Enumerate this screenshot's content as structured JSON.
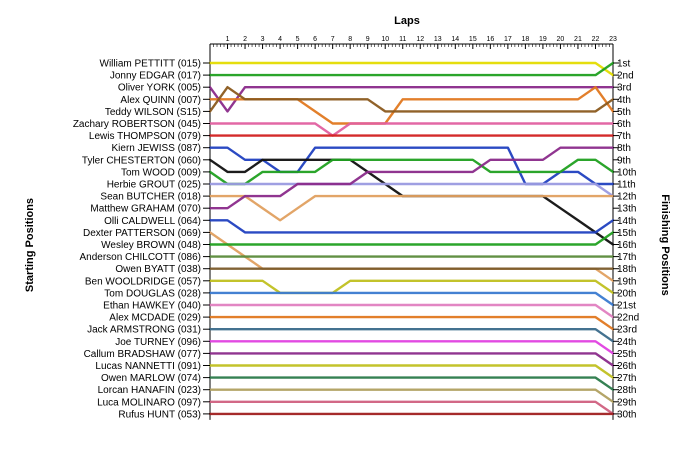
{
  "chart_data": {
    "type": "line",
    "title": "Laps",
    "xlabel": "Laps",
    "ylabel": "Starting Positions",
    "y2label": "Finishing Positions",
    "laps": [
      1,
      2,
      3,
      4,
      5,
      6,
      7,
      8,
      9,
      10,
      11,
      12,
      13,
      14,
      15,
      16,
      17,
      18,
      19,
      20,
      21,
      22,
      23
    ],
    "drivers": [
      "William PETTITT (015)",
      "Jonny EDGAR (017)",
      "Oliver YORK (005)",
      "Alex QUINN (007)",
      "Teddy WILSON (S15)",
      "Zachary ROBERTSON (045)",
      "Lewis THOMPSON (079)",
      "Kiern JEWISS (087)",
      "Tyler CHESTERTON (060)",
      "Tom WOOD (009)",
      "Herbie GROUT (025)",
      "Sean BUTCHER (018)",
      "Matthew GRAHAM (070)",
      "Olli CALDWELL (064)",
      "Dexter PATTERSON (069)",
      "Wesley BROWN (048)",
      "Anderson CHILCOTT (086)",
      "Owen BYATT (038)",
      "Ben WOOLDRIDGE (057)",
      "Tom DOUGLAS (028)",
      "Ethan HAWKEY (040)",
      "Alex MCDADE (029)",
      "Jack ARMSTRONG (031)",
      "Joe TURNEY (096)",
      "Callum BRADSHAW (077)",
      "Lucas NANNETTI (091)",
      "Owen MARLOW (074)",
      "Lorcan HANAFIN (023)",
      "Luca MOLINARO (097)",
      "Rufus HUNT (053)"
    ],
    "finishing_labels": [
      "1st",
      "2nd",
      "3rd",
      "4th",
      "5th",
      "6th",
      "7th",
      "8th",
      "9th",
      "10th",
      "11th",
      "12th",
      "13th",
      "14th",
      "15th",
      "16th",
      "17th",
      "18th",
      "19th",
      "20th",
      "21st",
      "22nd",
      "23rd",
      "24th",
      "25th",
      "26th",
      "27th",
      "28th",
      "29th",
      "30th"
    ],
    "series": [
      {
        "color": "#e4dc00",
        "values": [
          1,
          1,
          1,
          1,
          1,
          1,
          1,
          1,
          1,
          1,
          1,
          1,
          1,
          1,
          1,
          1,
          1,
          1,
          1,
          1,
          1,
          1,
          1,
          2
        ]
      },
      {
        "color": "#20a020",
        "values": [
          2,
          2,
          2,
          2,
          2,
          2,
          2,
          2,
          2,
          2,
          2,
          2,
          2,
          2,
          2,
          2,
          2,
          2,
          2,
          2,
          2,
          2,
          2,
          1
        ]
      },
      {
        "color": "#8a2a8a",
        "values": [
          3,
          5,
          3,
          3,
          3,
          3,
          3,
          3,
          3,
          3,
          3,
          3,
          3,
          3,
          3,
          3,
          3,
          3,
          3,
          3,
          3,
          3,
          3,
          3
        ]
      },
      {
        "color": "#e07820",
        "values": [
          4,
          4,
          4,
          4,
          4,
          4,
          5,
          6,
          6,
          6,
          6,
          4,
          4,
          4,
          4,
          4,
          4,
          4,
          4,
          4,
          4,
          4,
          3,
          5
        ]
      },
      {
        "color": "#8b5a1e",
        "values": [
          5,
          3,
          4,
          4,
          4,
          4,
          4,
          4,
          4,
          4,
          5,
          5,
          5,
          5,
          5,
          5,
          5,
          5,
          5,
          5,
          5,
          5,
          5,
          4
        ]
      },
      {
        "color": "#e060a0",
        "values": [
          6,
          6,
          6,
          6,
          6,
          6,
          6,
          7,
          6,
          6,
          6,
          6,
          6,
          6,
          6,
          6,
          6,
          6,
          6,
          6,
          6,
          6,
          6,
          6
        ]
      },
      {
        "color": "#d22020",
        "values": [
          7,
          7,
          7,
          7,
          7,
          7,
          7,
          7,
          7,
          7,
          7,
          7,
          7,
          7,
          7,
          7,
          7,
          7,
          7,
          7,
          7,
          7,
          7,
          7
        ]
      },
      {
        "color": "#2040c0",
        "values": [
          8,
          8,
          9,
          9,
          10,
          10,
          8,
          8,
          8,
          8,
          8,
          8,
          8,
          8,
          8,
          8,
          8,
          8,
          11,
          11,
          10,
          10,
          11,
          11
        ]
      },
      {
        "color": "#101010",
        "values": [
          9,
          10,
          10,
          9,
          9,
          9,
          9,
          9,
          9,
          10,
          11,
          12,
          12,
          12,
          12,
          12,
          12,
          12,
          12,
          12,
          13,
          14,
          15,
          16
        ]
      },
      {
        "color": "#20a020",
        "values": [
          10,
          11,
          11,
          10,
          10,
          10,
          10,
          9,
          9,
          9,
          9,
          9,
          9,
          9,
          9,
          9,
          10,
          10,
          10,
          10,
          10,
          9,
          9,
          10
        ]
      },
      {
        "color": "#9a9ae0",
        "values": [
          11,
          11,
          11,
          11,
          11,
          11,
          11,
          11,
          11,
          11,
          11,
          11,
          11,
          11,
          11,
          11,
          11,
          11,
          11,
          11,
          11,
          11,
          11,
          12
        ]
      },
      {
        "color": "#e0a060",
        "values": [
          12,
          12,
          12,
          13,
          14,
          13,
          12,
          12,
          12,
          12,
          12,
          12,
          12,
          12,
          12,
          12,
          12,
          12,
          12,
          12,
          12,
          12,
          12,
          12
        ]
      },
      {
        "color": "#8a2a8a",
        "values": [
          13,
          13,
          12,
          12,
          12,
          11,
          11,
          11,
          11,
          10,
          10,
          10,
          10,
          10,
          10,
          10,
          9,
          9,
          9,
          9,
          8,
          8,
          8,
          8
        ]
      },
      {
        "color": "#2040c0",
        "values": [
          14,
          14,
          15,
          15,
          15,
          15,
          15,
          15,
          15,
          15,
          15,
          15,
          15,
          15,
          15,
          15,
          15,
          15,
          15,
          15,
          15,
          15,
          15,
          14
        ]
      },
      {
        "color": "#e0a060",
        "values": [
          15,
          16,
          17,
          18,
          18,
          18,
          18,
          18,
          18,
          18,
          18,
          18,
          18,
          18,
          18,
          18,
          18,
          18,
          18,
          18,
          18,
          18,
          18,
          19
        ]
      },
      {
        "color": "#20a020",
        "values": [
          16,
          16,
          16,
          16,
          16,
          16,
          16,
          16,
          16,
          16,
          16,
          16,
          16,
          16,
          16,
          16,
          16,
          16,
          16,
          16,
          16,
          16,
          16,
          15
        ]
      },
      {
        "color": "#5a8a3a",
        "values": [
          17,
          17,
          17,
          17,
          17,
          17,
          17,
          17,
          17,
          17,
          17,
          17,
          17,
          17,
          17,
          17,
          17,
          17,
          17,
          17,
          17,
          17,
          17,
          17
        ]
      },
      {
        "color": "#7a5a2a",
        "values": [
          18,
          18,
          18,
          18,
          18,
          18,
          18,
          18,
          18,
          18,
          18,
          18,
          18,
          18,
          18,
          18,
          18,
          18,
          18,
          18,
          18,
          18,
          18,
          18
        ]
      },
      {
        "color": "#c0c020",
        "values": [
          19,
          19,
          19,
          19,
          20,
          20,
          20,
          20,
          19,
          19,
          19,
          19,
          19,
          19,
          19,
          19,
          19,
          19,
          19,
          19,
          19,
          19,
          19,
          20
        ]
      },
      {
        "color": "#3a7ad0",
        "values": [
          20,
          20,
          20,
          20,
          20,
          20,
          20,
          20,
          20,
          20,
          20,
          20,
          20,
          20,
          20,
          20,
          20,
          20,
          20,
          20,
          20,
          20,
          20,
          21
        ]
      },
      {
        "color": "#e080c0",
        "values": [
          21,
          21,
          21,
          21,
          21,
          21,
          21,
          21,
          21,
          21,
          21,
          21,
          21,
          21,
          21,
          21,
          21,
          21,
          21,
          21,
          21,
          21,
          21,
          22
        ]
      },
      {
        "color": "#e07820",
        "values": [
          22,
          22,
          22,
          22,
          22,
          22,
          22,
          22,
          22,
          22,
          22,
          22,
          22,
          22,
          22,
          22,
          22,
          22,
          22,
          22,
          22,
          22,
          22,
          23
        ]
      },
      {
        "color": "#3a6a8a",
        "values": [
          23,
          23,
          23,
          23,
          23,
          23,
          23,
          23,
          23,
          23,
          23,
          23,
          23,
          23,
          23,
          23,
          23,
          23,
          23,
          23,
          23,
          23,
          23,
          24
        ]
      },
      {
        "color": "#e040e0",
        "values": [
          24,
          24,
          24,
          24,
          24,
          24,
          24,
          24,
          24,
          24,
          24,
          24,
          24,
          24,
          24,
          24,
          24,
          24,
          24,
          24,
          24,
          24,
          24,
          25
        ]
      },
      {
        "color": "#8a2a8a",
        "values": [
          25,
          25,
          25,
          25,
          25,
          25,
          25,
          25,
          25,
          25,
          25,
          25,
          25,
          25,
          25,
          25,
          25,
          25,
          25,
          25,
          25,
          25,
          25,
          26
        ]
      },
      {
        "color": "#c0c020",
        "values": [
          26,
          26,
          26,
          26,
          26,
          26,
          26,
          26,
          26,
          26,
          26,
          26,
          26,
          26,
          26,
          26,
          26,
          26,
          26,
          26,
          26,
          26,
          26,
          27
        ]
      },
      {
        "color": "#2a7a4a",
        "values": [
          27,
          27,
          27,
          27,
          27,
          27,
          27,
          27,
          27,
          27,
          27,
          27,
          27,
          27,
          27,
          27,
          27,
          27,
          27,
          27,
          27,
          27,
          27,
          28
        ]
      },
      {
        "color": "#b0a060",
        "values": [
          28,
          28,
          28,
          28,
          28,
          28,
          28,
          28,
          28,
          28,
          28,
          28,
          28,
          28,
          28,
          28,
          28,
          28,
          28,
          28,
          28,
          28,
          28,
          29
        ]
      },
      {
        "color": "#d06080",
        "values": [
          29,
          29,
          29,
          29,
          29,
          29,
          29,
          29,
          29,
          29,
          29,
          29,
          29,
          29,
          29,
          29,
          29,
          29,
          29,
          29,
          29,
          29,
          29,
          30
        ]
      },
      {
        "color": "#a02020",
        "values": [
          30,
          30,
          30,
          30,
          30,
          30,
          30,
          30,
          30,
          30,
          30,
          30,
          30,
          30,
          30,
          30,
          30,
          30,
          30,
          30,
          30,
          30,
          30,
          30
        ]
      }
    ]
  }
}
